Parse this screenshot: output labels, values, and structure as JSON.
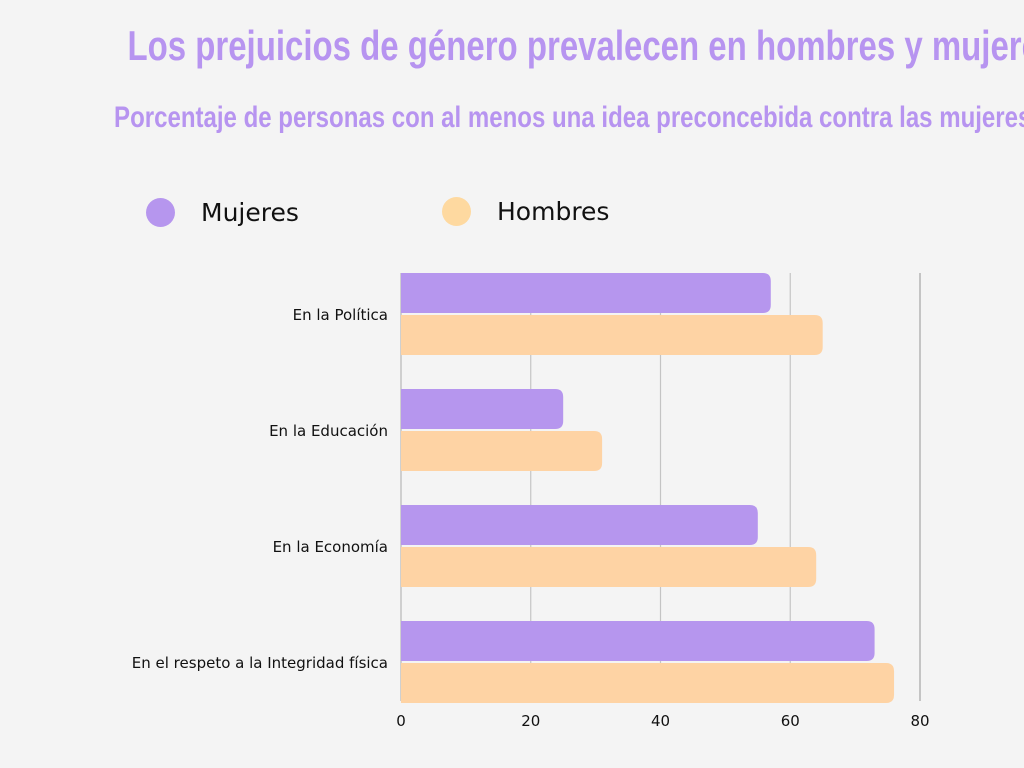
{
  "title": "Los prejuicios de género prevalecen en hombres y mujeres",
  "subtitle": "Porcentaje de personas con al menos una idea preconcebida contra las mujeres",
  "colors": {
    "title": "#b794f0",
    "mujeres": "#b696ee",
    "hombres": "#fed3a4",
    "background": "#f4f4f4",
    "grid": "#c4c4c4"
  },
  "chart_data": {
    "type": "bar",
    "orientation": "horizontal",
    "title": "Los prejuicios de género prevalecen en hombres y mujeres",
    "subtitle": "Porcentaje de personas con al menos una idea preconcebida contra las mujeres",
    "categories": [
      "En la Política",
      "En la Educación",
      "En la Economía",
      "En el respeto a la Integridad física"
    ],
    "series": [
      {
        "name": "Mujeres",
        "color": "#b696ee",
        "values": [
          57,
          25,
          55,
          73
        ]
      },
      {
        "name": "Hombres",
        "color": "#fed3a4",
        "values": [
          65,
          31,
          64,
          76
        ]
      }
    ],
    "xlim": [
      0,
      80
    ],
    "xticks": [
      "0",
      "20",
      "40",
      "60",
      "80"
    ],
    "xlabel": "",
    "ylabel": "",
    "grid": true,
    "legend_position": "top"
  }
}
